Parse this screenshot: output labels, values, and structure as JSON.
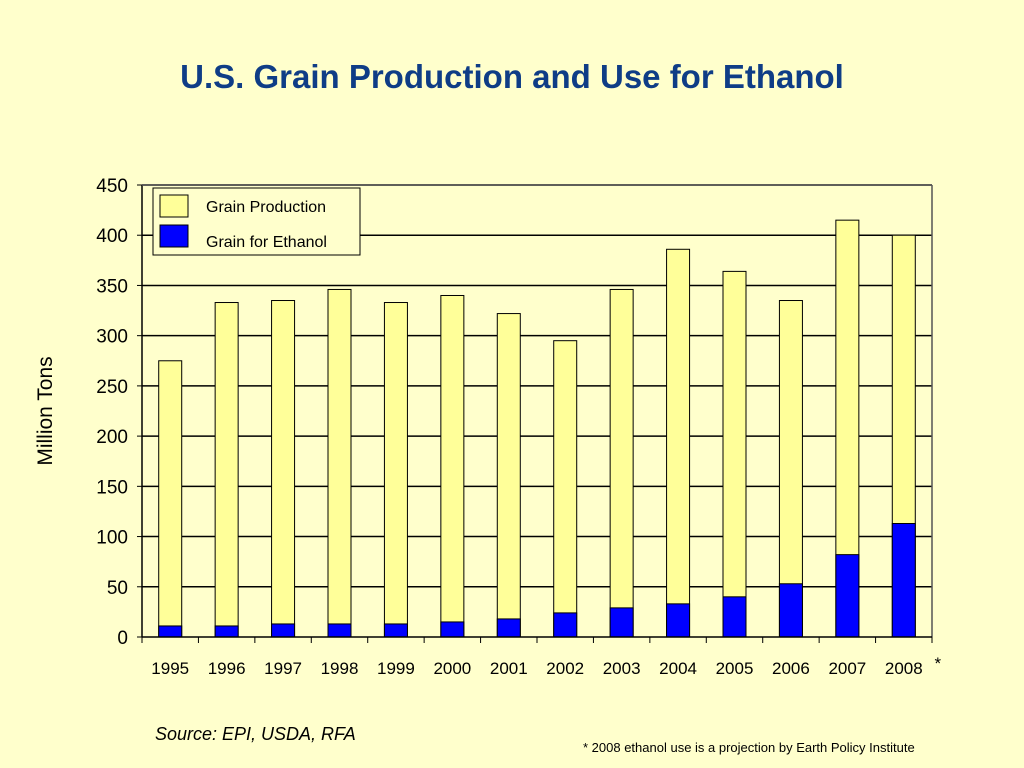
{
  "title": "U.S. Grain Production and Use for Ethanol",
  "source": "Source: EPI, USDA, RFA",
  "footnote": "* 2008 ethanol use is a projection by Earth Policy Institute",
  "colors": {
    "background": "#ffffcc",
    "title": "#0f3d86",
    "grain_production": "#ffff99",
    "grain_for_ethanol": "#0000ff"
  },
  "chart_data": {
    "type": "bar",
    "categories": [
      "1995",
      "1996",
      "1997",
      "1998",
      "1999",
      "2000",
      "2001",
      "2002",
      "2003",
      "2004",
      "2005",
      "2006",
      "2007",
      "2008"
    ],
    "category_marks": [
      "",
      "",
      "",
      "",
      "",
      "",
      "",
      "",
      "",
      "",
      "",
      "",
      "",
      "*"
    ],
    "series": [
      {
        "name": "Grain Production",
        "values": [
          275,
          333,
          335,
          346,
          333,
          340,
          322,
          295,
          346,
          386,
          364,
          335,
          415,
          400
        ]
      },
      {
        "name": "Grain for Ethanol",
        "values": [
          11,
          11,
          13,
          13,
          13,
          15,
          18,
          24,
          29,
          33,
          40,
          53,
          82,
          113
        ]
      }
    ],
    "overlay": true,
    "ylabel": "Million Tons",
    "xlabel": "",
    "ylim": [
      0,
      450
    ],
    "yticks": [
      0,
      50,
      100,
      150,
      200,
      250,
      300,
      350,
      400,
      450
    ],
    "grid": true,
    "legend": "top-left"
  }
}
